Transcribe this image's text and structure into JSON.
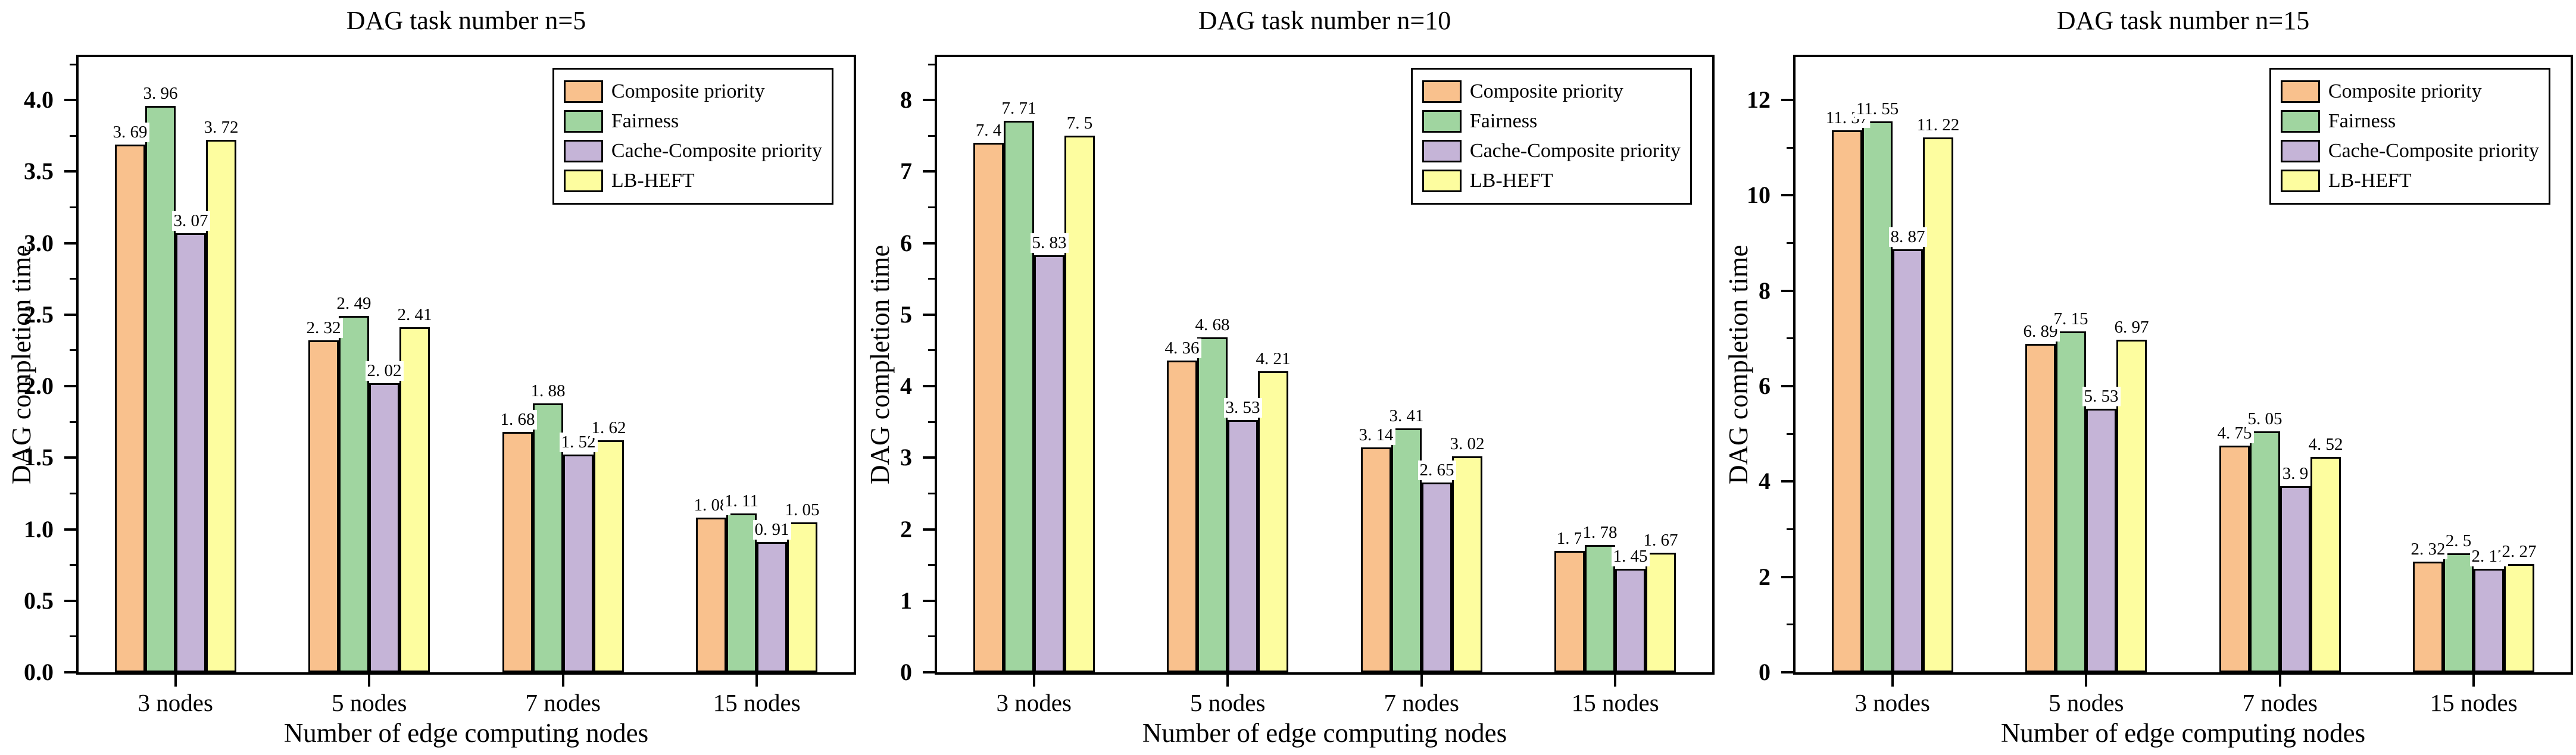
{
  "figure": {
    "background": "#FFFFFF",
    "panel_count": 3,
    "bar_border_color": "#000000"
  },
  "chart_data": [
    {
      "type": "bar",
      "title": "DAG task number n=5",
      "xlabel": "Number of edge computing nodes",
      "ylabel": "DAG completion time",
      "categories": [
        "3 nodes",
        "5 nodes",
        "7 nodes",
        "15 nodes"
      ],
      "series": [
        {
          "name": "Composite priority",
          "color": "#F9C18D",
          "values": [
            3.69,
            2.32,
            1.68,
            1.08
          ]
        },
        {
          "name": "Fairness",
          "color": "#A0D5A0",
          "values": [
            3.96,
            2.49,
            1.88,
            1.11
          ]
        },
        {
          "name": "Cache-Composite priority",
          "color": "#C5B4D7",
          "values": [
            3.07,
            2.02,
            1.52,
            0.91
          ]
        },
        {
          "name": "LB-HEFT",
          "color": "#FDFD9F",
          "values": [
            3.72,
            2.41,
            1.62,
            1.05
          ]
        }
      ],
      "ylim": [
        0,
        4.3
      ],
      "yticks": [
        0.0,
        0.5,
        1.0,
        1.5,
        2.0,
        2.5,
        3.0,
        3.5,
        4.0
      ],
      "ytick_labels": [
        "0.0",
        "0.5",
        "1.0",
        "1.5",
        "2.0",
        "2.5",
        "3.0",
        "3.5",
        "4.0"
      ],
      "legend_position": "top-right",
      "grid": false
    },
    {
      "type": "bar",
      "title": "DAG task number n=10",
      "xlabel": "Number of edge computing nodes",
      "ylabel": "DAG completion time",
      "categories": [
        "3 nodes",
        "5 nodes",
        "7 nodes",
        "15 nodes"
      ],
      "series": [
        {
          "name": "Composite priority",
          "color": "#F9C18D",
          "values": [
            7.4,
            4.36,
            3.14,
            1.7
          ]
        },
        {
          "name": "Fairness",
          "color": "#A0D5A0",
          "values": [
            7.71,
            4.68,
            3.41,
            1.78
          ]
        },
        {
          "name": "Cache-Composite priority",
          "color": "#C5B4D7",
          "values": [
            5.83,
            3.53,
            2.65,
            1.45
          ]
        },
        {
          "name": "LB-HEFT",
          "color": "#FDFD9F",
          "values": [
            7.5,
            4.21,
            3.02,
            1.67
          ]
        }
      ],
      "ylim": [
        0,
        8.6
      ],
      "yticks": [
        0,
        1,
        2,
        3,
        4,
        5,
        6,
        7,
        8
      ],
      "ytick_labels": [
        "0",
        "1",
        "2",
        "3",
        "4",
        "5",
        "6",
        "7",
        "8"
      ],
      "legend_position": "top-right",
      "grid": false
    },
    {
      "type": "bar",
      "title": "DAG task number n=15",
      "xlabel": "Number of edge computing nodes",
      "ylabel": "DAG completion time",
      "categories": [
        "3 nodes",
        "5 nodes",
        "7 nodes",
        "15 nodes"
      ],
      "series": [
        {
          "name": "Composite priority",
          "color": "#F9C18D",
          "values": [
            11.37,
            6.89,
            4.75,
            2.32
          ]
        },
        {
          "name": "Fairness",
          "color": "#A0D5A0",
          "values": [
            11.55,
            7.15,
            5.05,
            2.5
          ]
        },
        {
          "name": "Cache-Composite priority",
          "color": "#C5B4D7",
          "values": [
            8.87,
            5.53,
            3.9,
            2.17
          ]
        },
        {
          "name": "LB-HEFT",
          "color": "#FDFD9F",
          "values": [
            11.22,
            6.97,
            4.52,
            2.27
          ]
        }
      ],
      "ylim": [
        0,
        12.9
      ],
      "yticks": [
        0,
        2,
        4,
        6,
        8,
        10,
        12
      ],
      "ytick_labels": [
        "0",
        "2",
        "4",
        "6",
        "8",
        "10",
        "12"
      ],
      "legend_position": "top-right",
      "grid": false
    }
  ]
}
